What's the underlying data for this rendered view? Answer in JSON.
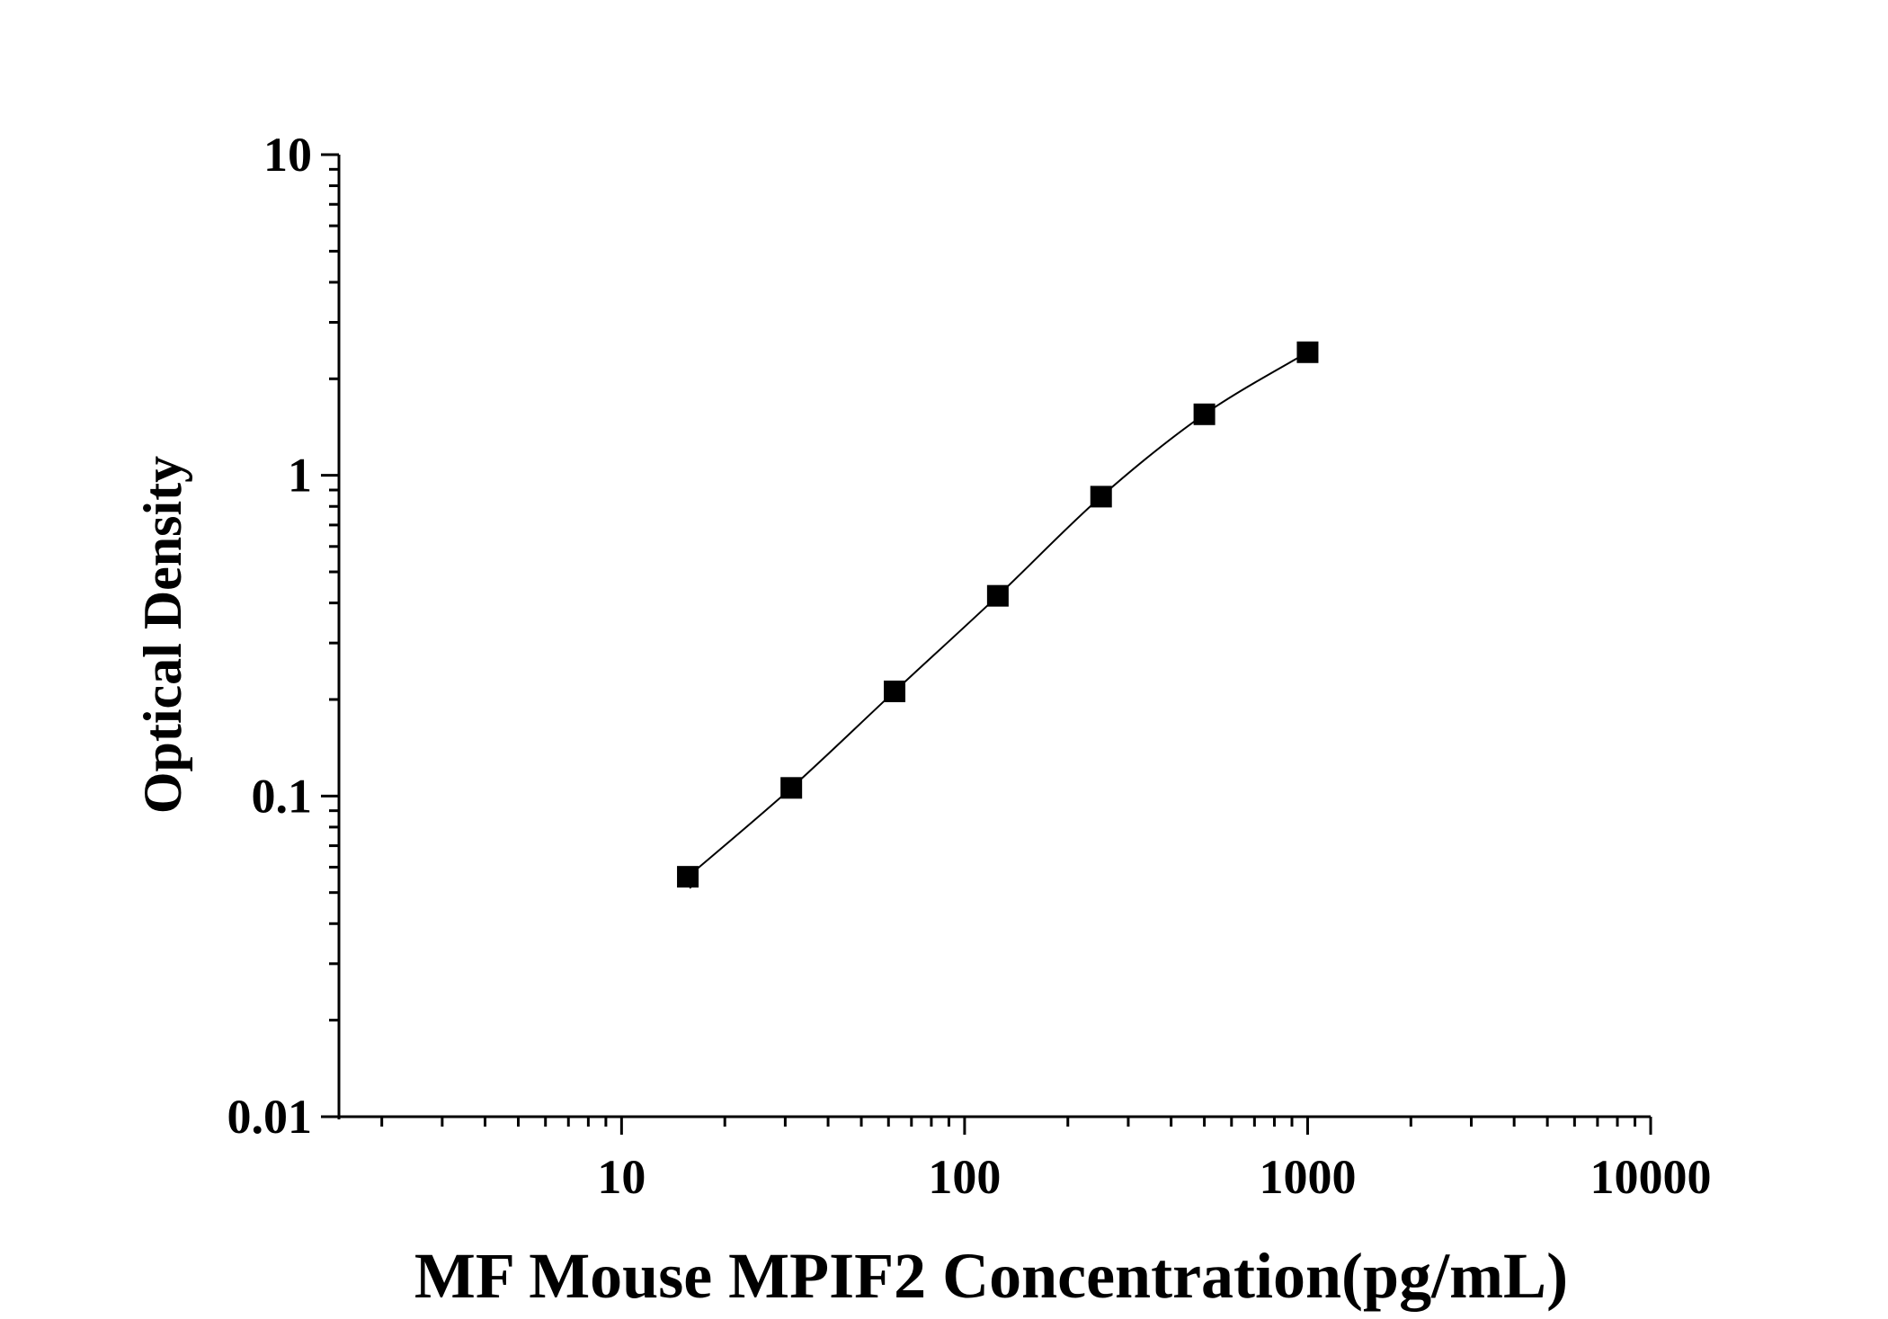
{
  "chart_data": {
    "type": "scatter",
    "title": "",
    "xlabel": "MF Mouse MPIF2 Concentration(pg/mL)",
    "ylabel": "Optical Density",
    "xscale": "log",
    "yscale": "log",
    "xlim": [
      1.5,
      10000
    ],
    "ylim": [
      0.01,
      10
    ],
    "x_ticks": [
      "10",
      "100",
      "1000",
      "10000"
    ],
    "y_ticks": [
      "0.01",
      "0.1",
      "1",
      "10"
    ],
    "grid": false,
    "legend": "none",
    "marker": "square",
    "colors": {
      "marker": "#000000",
      "line": "#000000",
      "axis": "#000000"
    },
    "series": [
      {
        "x": [
          15.6,
          31.25,
          62.5,
          125,
          250,
          500,
          1000
        ],
        "y": [
          0.056,
          0.106,
          0.212,
          0.421,
          0.858,
          1.55,
          2.42
        ],
        "fit": "curve"
      }
    ]
  }
}
